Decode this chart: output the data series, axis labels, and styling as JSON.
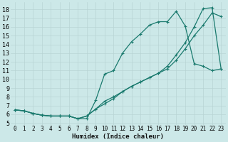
{
  "bg_color": "#cce8e8",
  "line_color": "#1a7a6e",
  "xlabel": "Humidex (Indice chaleur)",
  "xlim": [
    -0.5,
    23.5
  ],
  "ylim": [
    4.8,
    18.8
  ],
  "yticks": [
    5,
    6,
    7,
    8,
    9,
    10,
    11,
    12,
    13,
    14,
    15,
    16,
    17,
    18
  ],
  "xticks": [
    0,
    1,
    2,
    3,
    4,
    5,
    6,
    7,
    8,
    9,
    10,
    11,
    12,
    13,
    14,
    15,
    16,
    17,
    18,
    19,
    20,
    21,
    22,
    23
  ],
  "line1_x": [
    0,
    1,
    2,
    3,
    4,
    5,
    6,
    7,
    8,
    9,
    10,
    11,
    12,
    13,
    14,
    15,
    16,
    17,
    18,
    19,
    20,
    21,
    22,
    23
  ],
  "line1_y": [
    6.5,
    6.4,
    6.1,
    5.9,
    5.8,
    5.8,
    5.8,
    5.5,
    5.5,
    7.6,
    10.6,
    11.0,
    13.0,
    14.3,
    15.2,
    16.2,
    16.6,
    16.6,
    17.8,
    16.1,
    11.8,
    11.5,
    11.0,
    11.2
  ],
  "line2_x": [
    0,
    1,
    2,
    3,
    4,
    5,
    6,
    7,
    8,
    9,
    10,
    11,
    12,
    13,
    14,
    15,
    16,
    17,
    18,
    19,
    20,
    21,
    22,
    23
  ],
  "line2_y": [
    6.5,
    6.4,
    6.1,
    5.9,
    5.8,
    5.8,
    5.8,
    5.5,
    5.8,
    6.6,
    7.5,
    8.0,
    8.6,
    9.2,
    9.7,
    10.2,
    10.7,
    11.2,
    12.2,
    13.5,
    15.0,
    16.2,
    17.6,
    17.2
  ],
  "line3_x": [
    0,
    1,
    2,
    3,
    4,
    5,
    6,
    7,
    8,
    9,
    10,
    11,
    12,
    13,
    14,
    15,
    16,
    17,
    18,
    19,
    20,
    21,
    22,
    23
  ],
  "line3_y": [
    6.5,
    6.4,
    6.1,
    5.9,
    5.8,
    5.8,
    5.8,
    5.5,
    5.8,
    6.6,
    7.2,
    7.8,
    8.6,
    9.2,
    9.7,
    10.2,
    10.7,
    11.5,
    12.8,
    14.2,
    16.0,
    18.1,
    18.2,
    11.2
  ]
}
